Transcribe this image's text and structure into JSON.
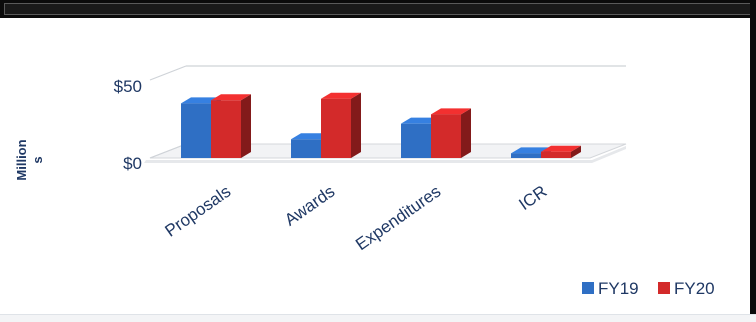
{
  "chart_data": {
    "type": "bar",
    "style": "3d-clustered-column",
    "categories": [
      "Proposals",
      "Awards",
      "Expenditures",
      "ICR"
    ],
    "series": [
      {
        "name": "FY19",
        "values": [
          35,
          12,
          22,
          3
        ],
        "color": "#2f6fc4"
      },
      {
        "name": "FY20",
        "values": [
          37,
          38,
          28,
          4
        ],
        "color": "#d32a2a"
      }
    ],
    "y_ticks": [
      "$0",
      "$50"
    ],
    "ylim": [
      0,
      50
    ],
    "ylabel": "Million\ns",
    "ylabel_line1": "Million",
    "ylabel_line2": "s",
    "grid": true,
    "legend_position": "bottom-right"
  }
}
